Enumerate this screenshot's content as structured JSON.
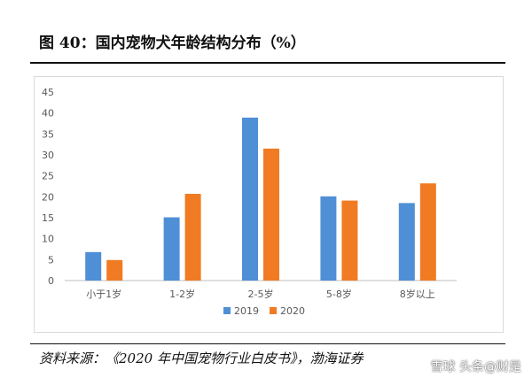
{
  "figure": {
    "title": "图 40：国内宠物犬年龄结构分布（%）",
    "source": "资料来源：《2020 年中国宠物行业白皮书》，渤海证券",
    "watermark": "雪球 头条@财是"
  },
  "chart_data": {
    "type": "bar",
    "categories": [
      "小于1岁",
      "1-2岁",
      "2-5岁",
      "5-8岁",
      "8岁以上"
    ],
    "series": [
      {
        "name": "2019",
        "values": [
          6.8,
          15.1,
          38.9,
          20.1,
          18.5
        ],
        "color": "#4f8fd6"
      },
      {
        "name": "2020",
        "values": [
          4.9,
          20.7,
          31.5,
          19.1,
          23.2
        ],
        "color": "#f07b22"
      }
    ],
    "ylim": [
      0,
      45
    ],
    "yticks": [
      0,
      5,
      10,
      15,
      20,
      25,
      30,
      35,
      40,
      45
    ],
    "grid": false,
    "legend": "bottom-center"
  }
}
